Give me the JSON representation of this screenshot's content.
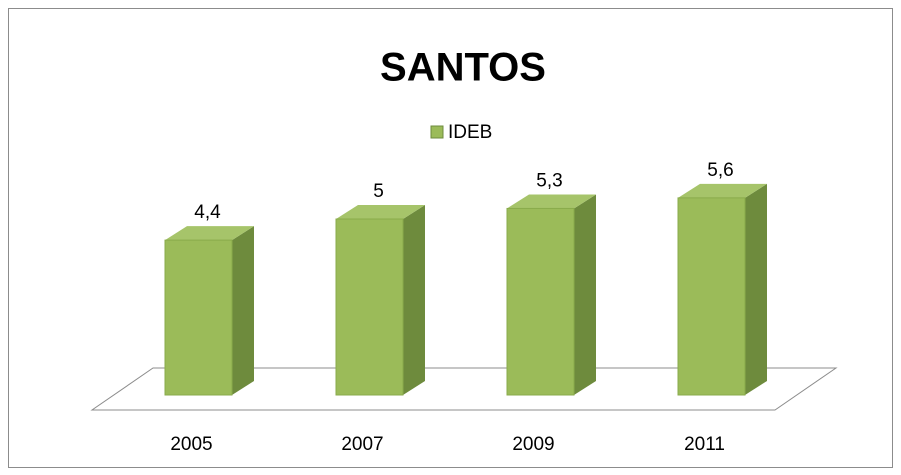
{
  "chart_data": {
    "type": "bar",
    "title": "SANTOS",
    "categories": [
      "2005",
      "2007",
      "2009",
      "2011"
    ],
    "series": [
      {
        "name": "IDEB",
        "color": "#9bbb59",
        "values": [
          4.4,
          5,
          5.3,
          5.6
        ],
        "value_labels": [
          "4,4",
          "5",
          "5,3",
          "5,6"
        ]
      }
    ]
  }
}
